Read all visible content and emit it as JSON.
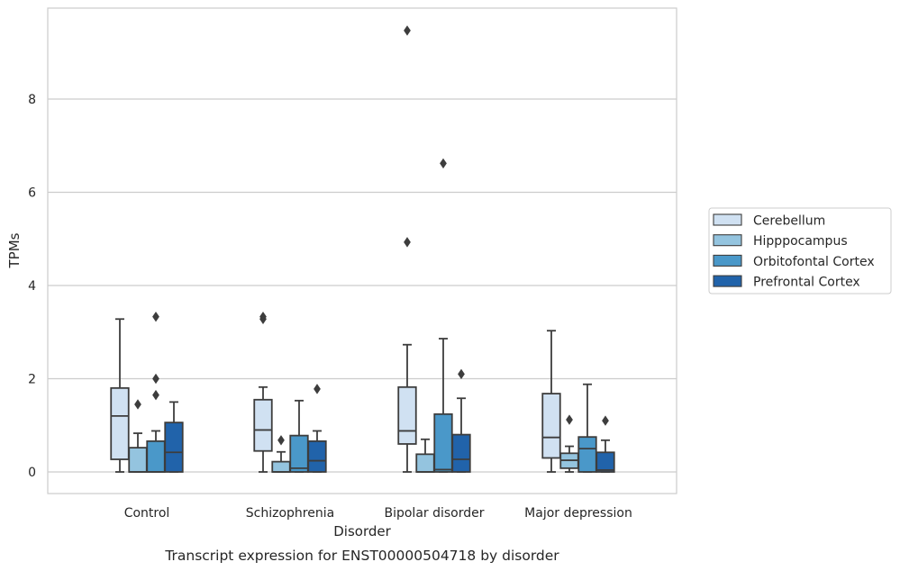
{
  "chart_data": {
    "type": "box",
    "title": "",
    "caption": "Transcript expression for ENST00000504718 by disorder",
    "xlabel": "Disorder",
    "ylabel": "TPMs",
    "ylim": [
      -0.45,
      9.9
    ],
    "yticks": [
      0,
      2,
      4,
      6,
      8
    ],
    "grid": "horizontal",
    "legend_position": "right",
    "categories": [
      "Control",
      "Schizophrenia",
      "Bipolar disorder",
      "Major depression"
    ],
    "series": [
      {
        "name": "Cerebellum",
        "color": "#d0e1f2",
        "boxes": [
          {
            "whisker_low": 0,
            "q1": 0.27,
            "median": 1.2,
            "q3": 1.8,
            "whisker_high": 3.28,
            "outliers": []
          },
          {
            "whisker_low": 0,
            "q1": 0.45,
            "median": 0.9,
            "q3": 1.55,
            "whisker_high": 1.82,
            "outliers": [
              3.28,
              3.33
            ]
          },
          {
            "whisker_low": 0,
            "q1": 0.6,
            "median": 0.88,
            "q3": 1.82,
            "whisker_high": 2.73,
            "outliers": [
              4.93,
              9.47
            ]
          },
          {
            "whisker_low": 0,
            "q1": 0.3,
            "median": 0.74,
            "q3": 1.68,
            "whisker_high": 3.03,
            "outliers": []
          }
        ]
      },
      {
        "name": "Hipppocampus",
        "color": "#94c4df",
        "boxes": [
          {
            "whisker_low": 0,
            "q1": 0,
            "median": 0,
            "q3": 0.52,
            "whisker_high": 0.83,
            "outliers": [
              1.45
            ]
          },
          {
            "whisker_low": 0,
            "q1": 0,
            "median": 0,
            "q3": 0.22,
            "whisker_high": 0.43,
            "outliers": [
              0.68
            ]
          },
          {
            "whisker_low": 0,
            "q1": 0,
            "median": 0,
            "q3": 0.38,
            "whisker_high": 0.7,
            "outliers": []
          },
          {
            "whisker_low": 0,
            "q1": 0.08,
            "median": 0.25,
            "q3": 0.4,
            "whisker_high": 0.55,
            "outliers": [
              1.12
            ]
          }
        ]
      },
      {
        "name": "Orbitofontal Cortex",
        "color": "#4a98c9",
        "boxes": [
          {
            "whisker_low": 0,
            "q1": 0,
            "median": 0,
            "q3": 0.66,
            "whisker_high": 0.88,
            "outliers": [
              1.65,
              2.0,
              3.33
            ]
          },
          {
            "whisker_low": 0,
            "q1": 0,
            "median": 0.08,
            "q3": 0.78,
            "whisker_high": 1.53,
            "outliers": []
          },
          {
            "whisker_low": 0,
            "q1": 0,
            "median": 0.05,
            "q3": 1.24,
            "whisker_high": 2.86,
            "outliers": [
              6.62
            ]
          },
          {
            "whisker_low": 0,
            "q1": 0,
            "median": 0.5,
            "q3": 0.75,
            "whisker_high": 1.88,
            "outliers": []
          }
        ]
      },
      {
        "name": "Prefrontal Cortex",
        "color": "#2163aa",
        "boxes": [
          {
            "whisker_low": 0,
            "q1": 0,
            "median": 0.42,
            "q3": 1.06,
            "whisker_high": 1.5,
            "outliers": []
          },
          {
            "whisker_low": 0,
            "q1": 0,
            "median": 0.24,
            "q3": 0.66,
            "whisker_high": 0.88,
            "outliers": [
              1.78
            ]
          },
          {
            "whisker_low": 0,
            "q1": 0,
            "median": 0.27,
            "q3": 0.8,
            "whisker_high": 1.58,
            "outliers": [
              2.1
            ]
          },
          {
            "whisker_low": 0,
            "q1": 0,
            "median": 0.04,
            "q3": 0.42,
            "whisker_high": 0.68,
            "outliers": [
              1.1
            ]
          }
        ]
      }
    ]
  }
}
